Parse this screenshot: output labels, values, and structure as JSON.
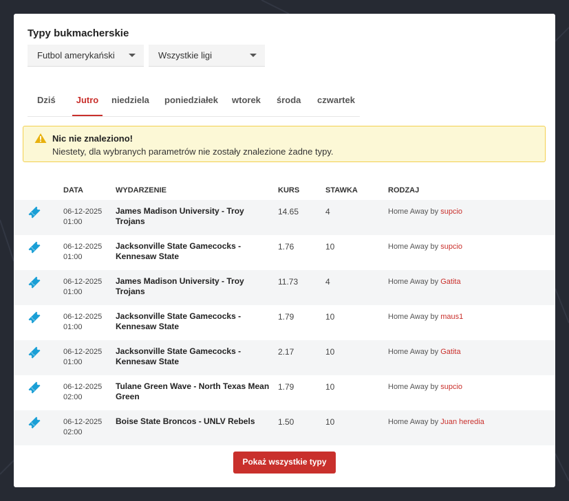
{
  "page": {
    "title": "Typy bukmacherskie"
  },
  "filters": {
    "sport": "Futbol amerykański",
    "league": "Wszystkie ligi"
  },
  "tabs": [
    {
      "label": "Dziś",
      "active": false
    },
    {
      "label": "Jutro",
      "active": true
    },
    {
      "label": "niedziela",
      "active": false
    },
    {
      "label": "poniedziałek",
      "active": false
    },
    {
      "label": "wtorek",
      "active": false
    },
    {
      "label": "środa",
      "active": false
    },
    {
      "label": "czwartek",
      "active": false
    }
  ],
  "alert": {
    "title": "Nic nie znaleziono!",
    "text": "Niestety, dla wybranych parametrów nie zostały znalezione żadne typy."
  },
  "table": {
    "headers": {
      "date": "DATA",
      "event": "WYDARZENIE",
      "odds": "KURS",
      "stake": "STAWKA",
      "type": "RODZAJ"
    },
    "rows": [
      {
        "date": "06-12-2025",
        "time": "01:00",
        "event": "James Madison University - Troy Trojans",
        "odds": "14.65",
        "stake": "4",
        "type": "Home Away by",
        "user": "supcio"
      },
      {
        "date": "06-12-2025",
        "time": "01:00",
        "event": "Jacksonville State Gamecocks - Kennesaw State",
        "odds": "1.76",
        "stake": "10",
        "type": "Home Away by",
        "user": "supcio"
      },
      {
        "date": "06-12-2025",
        "time": "01:00",
        "event": "James Madison University - Troy Trojans",
        "odds": "11.73",
        "stake": "4",
        "type": "Home Away by",
        "user": "Gatita"
      },
      {
        "date": "06-12-2025",
        "time": "01:00",
        "event": "Jacksonville State Gamecocks - Kennesaw State",
        "odds": "1.79",
        "stake": "10",
        "type": "Home Away by",
        "user": "maus1"
      },
      {
        "date": "06-12-2025",
        "time": "01:00",
        "event": "Jacksonville State Gamecocks - Kennesaw State",
        "odds": "2.17",
        "stake": "10",
        "type": "Home Away by",
        "user": "Gatita"
      },
      {
        "date": "06-12-2025",
        "time": "02:00",
        "event": "Tulane Green Wave - North Texas Mean Green",
        "odds": "1.79",
        "stake": "10",
        "type": "Home Away by",
        "user": "supcio"
      },
      {
        "date": "06-12-2025",
        "time": "02:00",
        "event": "Boise State Broncos - UNLV Rebels",
        "odds": "1.50",
        "stake": "10",
        "type": "Home Away by",
        "user": "Juan heredia"
      }
    ]
  },
  "show_all_button": "Pokaż wszystkie typy",
  "colors": {
    "accent": "#c9302c",
    "ticket_icon": "#1a9fd6",
    "alert_bg": "#fcf8d6",
    "alert_border": "#f3cf4f"
  }
}
